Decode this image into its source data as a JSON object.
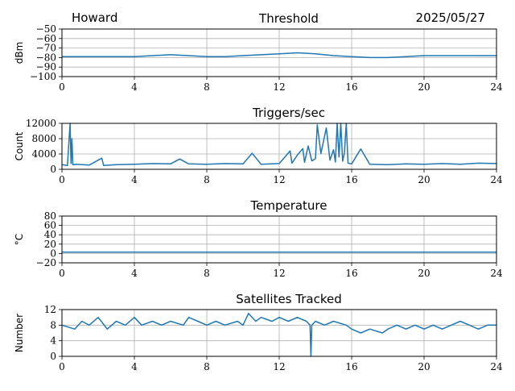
{
  "header": {
    "station": "Howard",
    "date": "2025/05/27"
  },
  "style": {
    "line_color": "#1f77b4",
    "grid_color": "#b0b0b0",
    "axis_color": "#000000"
  },
  "chart_data": [
    {
      "id": "threshold",
      "type": "line",
      "title": "Threshold",
      "xlabel": "",
      "ylabel": "dBm",
      "xlim": [
        0,
        24
      ],
      "ylim": [
        -100,
        -50
      ],
      "x_ticks": [
        0,
        4,
        8,
        12,
        16,
        20,
        24
      ],
      "y_ticks": [
        -100,
        -90,
        -80,
        -70,
        -60,
        -50
      ],
      "y_tick_labels": [
        "−100",
        "−90",
        "−80",
        "−70",
        "−60",
        "−50"
      ],
      "grid": true,
      "series": [
        {
          "x": [
            0,
            1,
            2,
            3,
            4,
            5,
            6,
            7,
            8,
            9,
            10,
            11,
            12,
            13,
            14,
            15,
            16,
            17,
            18,
            19,
            20,
            21,
            22,
            23,
            24
          ],
          "values": [
            -79,
            -79,
            -79,
            -79,
            -79,
            -78,
            -77,
            -78,
            -79,
            -79,
            -78,
            -77,
            -76,
            -75,
            -76,
            -78,
            -79,
            -80,
            -80,
            -79,
            -78,
            -78,
            -78,
            -78,
            -78
          ]
        }
      ]
    },
    {
      "id": "triggers",
      "type": "line",
      "title": "Triggers/sec",
      "xlabel": "",
      "ylabel": "Count",
      "xlim": [
        0,
        24
      ],
      "ylim": [
        0,
        12000
      ],
      "x_ticks": [
        0,
        4,
        8,
        12,
        16,
        20,
        24
      ],
      "y_ticks": [
        0,
        4000,
        8000,
        12000
      ],
      "y_tick_labels": [
        "0",
        "4000",
        "8000",
        "12000"
      ],
      "grid": true,
      "series": [
        {
          "x": [
            0,
            0.3,
            0.45,
            0.5,
            0.55,
            0.6,
            0.8,
            1.5,
            2.2,
            2.3,
            3,
            4,
            5,
            6,
            6.5,
            7,
            8,
            9,
            10,
            10.5,
            11,
            12,
            12.6,
            12.7,
            13,
            13.3,
            13.4,
            13.6,
            13.8,
            14,
            14.1,
            14.3,
            14.6,
            14.8,
            15,
            15.1,
            15.2,
            15.3,
            15.4,
            15.5,
            15.6,
            15.7,
            15.8,
            16,
            16.5,
            17,
            18,
            19,
            20,
            21,
            22,
            23,
            24
          ],
          "values": [
            1200,
            1000,
            12000,
            1500,
            8000,
            1200,
            1300,
            1100,
            2900,
            1000,
            1200,
            1300,
            1500,
            1400,
            2700,
            1400,
            1300,
            1500,
            1400,
            4200,
            1300,
            1500,
            4800,
            1600,
            3700,
            5400,
            1800,
            6100,
            2200,
            2800,
            11600,
            4100,
            10800,
            2400,
            5100,
            1900,
            12000,
            3200,
            12000,
            2100,
            4300,
            12000,
            1600,
            1400,
            5300,
            1300,
            1200,
            1400,
            1300,
            1500,
            1300,
            1600,
            1500
          ]
        }
      ]
    },
    {
      "id": "temperature",
      "type": "line",
      "title": "Temperature",
      "xlabel": "",
      "ylabel": "°C",
      "xlim": [
        0,
        24
      ],
      "ylim": [
        -20,
        80
      ],
      "x_ticks": [
        0,
        4,
        8,
        12,
        16,
        20,
        24
      ],
      "y_ticks": [
        -20,
        0,
        20,
        40,
        60,
        80
      ],
      "y_tick_labels": [
        "−20",
        "0",
        "20",
        "40",
        "60",
        "80"
      ],
      "grid": true,
      "series": [
        {
          "x": [
            0,
            24
          ],
          "values": [
            3,
            3
          ]
        }
      ]
    },
    {
      "id": "satellites",
      "type": "line",
      "title": "Satellites Tracked",
      "xlabel": "",
      "ylabel": "Number",
      "xlim": [
        0,
        24
      ],
      "ylim": [
        0,
        12
      ],
      "x_ticks": [
        0,
        4,
        8,
        12,
        16,
        20,
        24
      ],
      "y_ticks": [
        0,
        4,
        8,
        12
      ],
      "y_tick_labels": [
        "0",
        "4",
        "8",
        "12"
      ],
      "grid": true,
      "series": [
        {
          "x": [
            0,
            0.7,
            1.1,
            1.5,
            2.0,
            2.5,
            3.0,
            3.5,
            4.0,
            4.4,
            5.0,
            5.5,
            6.0,
            6.7,
            7.0,
            7.5,
            8.0,
            8.5,
            9.0,
            9.7,
            10.0,
            10.3,
            10.7,
            11.0,
            11.6,
            12.0,
            12.5,
            13.0,
            13.5,
            13.7,
            13.75,
            13.8,
            14.0,
            14.5,
            15.0,
            15.7,
            16.0,
            16.5,
            17.0,
            17.7,
            18.0,
            18.5,
            19.0,
            19.5,
            20.0,
            20.5,
            21.0,
            21.5,
            22.0,
            22.5,
            23.0,
            23.5,
            24.0
          ],
          "values": [
            8,
            7,
            9,
            8,
            10,
            7,
            9,
            8,
            10,
            8,
            9,
            8,
            9,
            8,
            10,
            9,
            8,
            9,
            8,
            9,
            8,
            11,
            9,
            10,
            9,
            10,
            9,
            10,
            9,
            8,
            0,
            8,
            9,
            8,
            9,
            8,
            7,
            6,
            7,
            6,
            7,
            8,
            7,
            8,
            7,
            8,
            7,
            8,
            9,
            8,
            7,
            8,
            8
          ]
        }
      ]
    }
  ]
}
